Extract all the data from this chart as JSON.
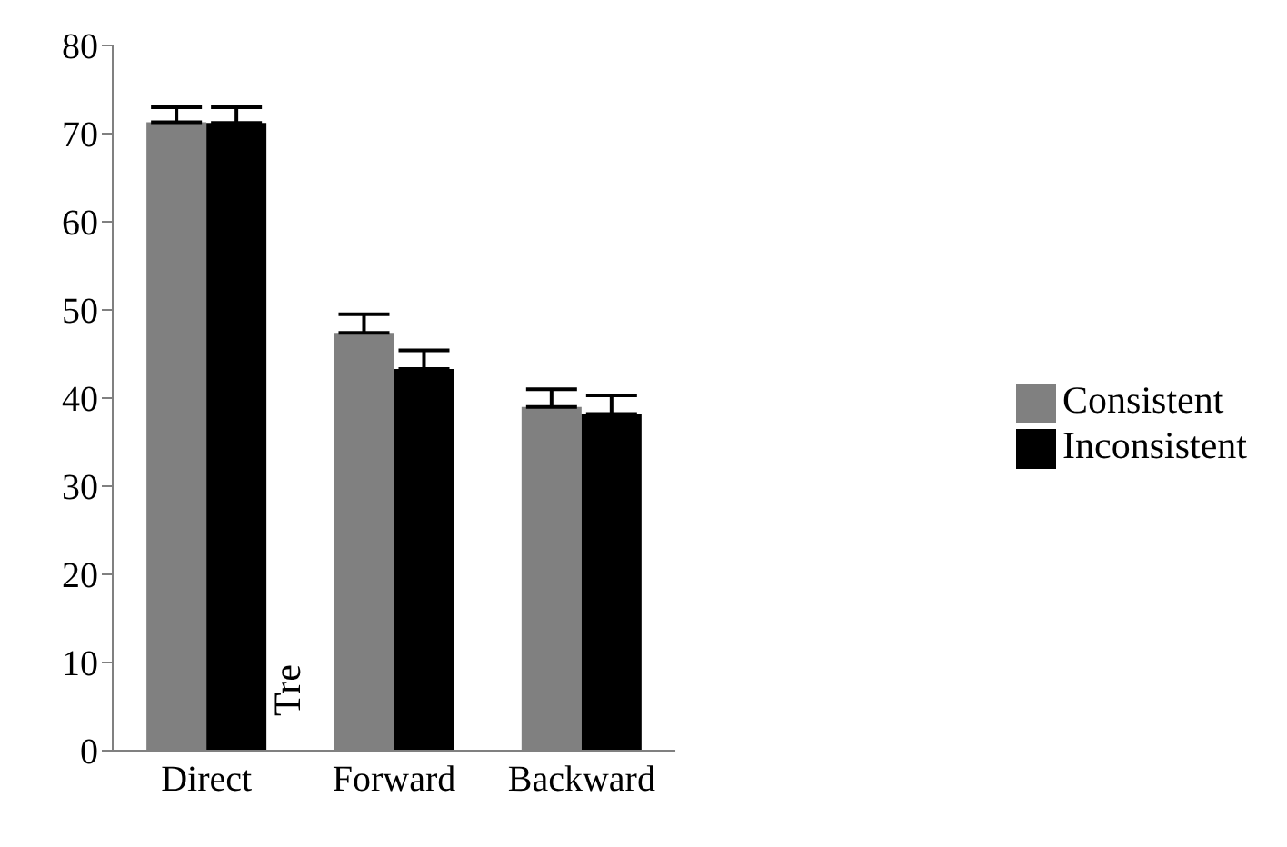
{
  "chart_data": {
    "type": "bar",
    "categories": [
      "Direct",
      "Forward",
      "Backward"
    ],
    "series": [
      {
        "name": "Consistent",
        "color": "#808080",
        "values": [
          71.3,
          47.4,
          39.0
        ],
        "errors": [
          [
            71.3,
            73.0
          ],
          [
            47.4,
            49.5
          ],
          [
            39.0,
            41.0
          ]
        ]
      },
      {
        "name": "Inconsistent",
        "color": "#000000",
        "values": [
          71.2,
          43.3,
          38.2
        ],
        "errors": [
          [
            71.2,
            73.0
          ],
          [
            43.3,
            45.4
          ],
          [
            38.2,
            40.3
          ]
        ]
      }
    ],
    "ylim": [
      0,
      80
    ],
    "yticks": [
      0,
      10,
      20,
      30,
      40,
      50,
      60,
      70,
      80
    ],
    "grid": false,
    "legend": "right",
    "annotations": [
      "Tre"
    ]
  }
}
